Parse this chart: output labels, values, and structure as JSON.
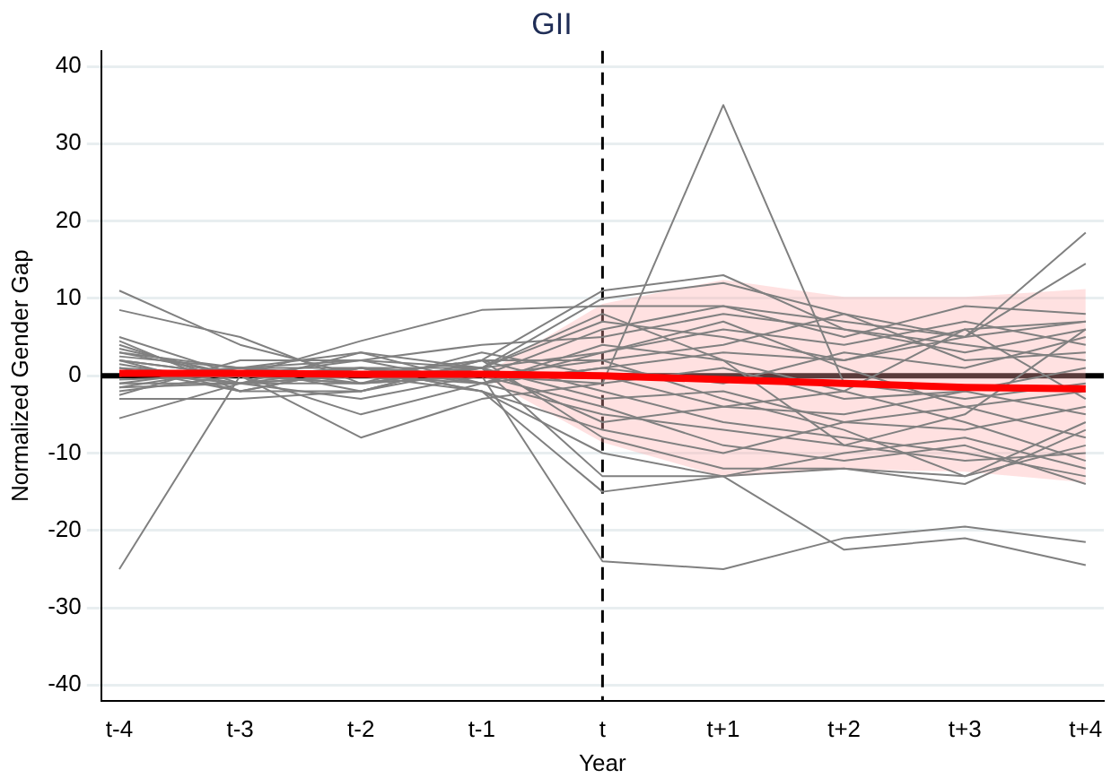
{
  "chart_data": {
    "type": "line",
    "title": "GII",
    "xlabel": "Year",
    "ylabel": "Normalized Gender Gap",
    "categories": [
      "t-4",
      "t-3",
      "t-2",
      "t-1",
      "t",
      "t+1",
      "t+2",
      "t+3",
      "t+4"
    ],
    "ylim": [
      -42,
      42
    ],
    "yticks": [
      -40,
      -30,
      -20,
      -10,
      0,
      10,
      20,
      30,
      40
    ],
    "grid": "y",
    "legend": false,
    "marker": "none",
    "ref_lines": [
      {
        "axis": "y",
        "value": 0,
        "color": "#000000",
        "line_style": "solid"
      },
      {
        "axis": "x",
        "value": "t",
        "color": "#000000",
        "line_style": "dashed"
      }
    ],
    "series": [
      {
        "color": "#808080",
        "values": [
          11,
          4,
          0,
          2,
          11,
          13,
          6,
          4,
          2
        ]
      },
      {
        "color": "#808080",
        "values": [
          8.5,
          5,
          -1,
          1,
          10,
          12,
          8,
          5,
          7
        ]
      },
      {
        "color": "#808080",
        "values": [
          -25,
          0,
          1,
          0,
          -24,
          -25,
          -21,
          -19.5,
          -21.5
        ]
      },
      {
        "color": "#808080",
        "values": [
          -5.5,
          -1,
          1,
          -2,
          -15,
          -13,
          -22.5,
          -21,
          -24.5
        ]
      },
      {
        "color": "#808080",
        "values": [
          2,
          0,
          -8,
          -3,
          -1,
          35,
          -1,
          -3,
          -1
        ]
      },
      {
        "color": "#808080",
        "values": [
          5,
          0,
          4.5,
          8.5,
          9,
          9,
          7,
          5,
          18.5
        ]
      },
      {
        "color": "#808080",
        "values": [
          4,
          -1,
          3,
          1,
          7,
          5,
          2,
          5,
          14.5
        ]
      },
      {
        "color": "#808080",
        "values": [
          3,
          1,
          2,
          4,
          5,
          8,
          6,
          3,
          6
        ]
      },
      {
        "color": "#808080",
        "values": [
          2,
          -2,
          -2,
          1,
          3,
          6,
          4,
          7,
          4
        ]
      },
      {
        "color": "#808080",
        "values": [
          1,
          0,
          1,
          -1,
          1,
          3,
          2,
          6,
          7
        ]
      },
      {
        "color": "#808080",
        "values": [
          0,
          1,
          -1,
          0,
          -1,
          1,
          -3,
          -2,
          1
        ]
      },
      {
        "color": "#808080",
        "values": [
          -1,
          -1,
          0,
          1,
          -3,
          -2,
          -6,
          -4,
          -8
        ]
      },
      {
        "color": "#808080",
        "values": [
          -2,
          0,
          -5,
          -1,
          -5,
          -7,
          -9,
          -11,
          -10
        ]
      },
      {
        "color": "#808080",
        "values": [
          -3,
          -3,
          -2,
          2,
          -8,
          -12,
          -12,
          -14,
          -7
        ]
      },
      {
        "color": "#808080",
        "values": [
          -1.5,
          1,
          0,
          -2,
          -10,
          -13,
          -10,
          -8,
          -12
        ]
      },
      {
        "color": "#808080",
        "values": [
          4.5,
          -2,
          1,
          0,
          2,
          4,
          8,
          2,
          3
        ]
      },
      {
        "color": "#808080",
        "values": [
          3.5,
          0,
          -1,
          3,
          0,
          -4,
          -5,
          -2,
          -5
        ]
      },
      {
        "color": "#808080",
        "values": [
          2.5,
          1,
          3,
          -1,
          4,
          2,
          -2,
          6,
          -3
        ]
      },
      {
        "color": "#808080",
        "values": [
          1.5,
          -1,
          0,
          2,
          -2,
          -6,
          -8,
          -10,
          -13
        ]
      },
      {
        "color": "#808080",
        "values": [
          -0.5,
          0,
          -1,
          0,
          6,
          9,
          5,
          9,
          8
        ]
      },
      {
        "color": "#808080",
        "values": [
          -2.5,
          2,
          2,
          1,
          -6,
          -4,
          -2,
          -6,
          -11
        ]
      },
      {
        "color": "#808080",
        "values": [
          0.5,
          -1,
          -3,
          0,
          -4,
          -9,
          -11,
          -9,
          -14
        ]
      },
      {
        "color": "#808080",
        "values": [
          3,
          0,
          2,
          -1,
          1,
          -1,
          3,
          1,
          5
        ]
      },
      {
        "color": "#808080",
        "values": [
          -1,
          1,
          -2,
          2,
          2,
          -3,
          -7,
          -13,
          -6
        ]
      },
      {
        "color": "#808080",
        "values": [
          1,
          -2,
          1,
          1,
          -13,
          -13,
          -12,
          -13,
          -9
        ]
      },
      {
        "color": "#808080",
        "values": [
          2,
          0,
          0,
          -1,
          3,
          7,
          1,
          -4,
          -2
        ]
      },
      {
        "color": "#808080",
        "values": [
          0,
          1,
          1,
          -2,
          -7,
          -10,
          -6,
          -7,
          -4
        ]
      },
      {
        "color": "#808080",
        "values": [
          -1.5,
          -1,
          -1,
          1,
          8,
          2,
          -9,
          -5,
          6
        ]
      },
      {
        "color": "#ff0000",
        "values": [
          0.3,
          0.3,
          0.2,
          0.2,
          0,
          -0.5,
          -1,
          -1.5,
          -1.7
        ],
        "lower": [
          null,
          null,
          null,
          0,
          -8.6,
          -13.1,
          -12.1,
          -12.4,
          -13.8
        ],
        "upper": [
          null,
          null,
          null,
          0,
          9.3,
          12.4,
          10.2,
          10.2,
          11.2
        ]
      }
    ]
  }
}
